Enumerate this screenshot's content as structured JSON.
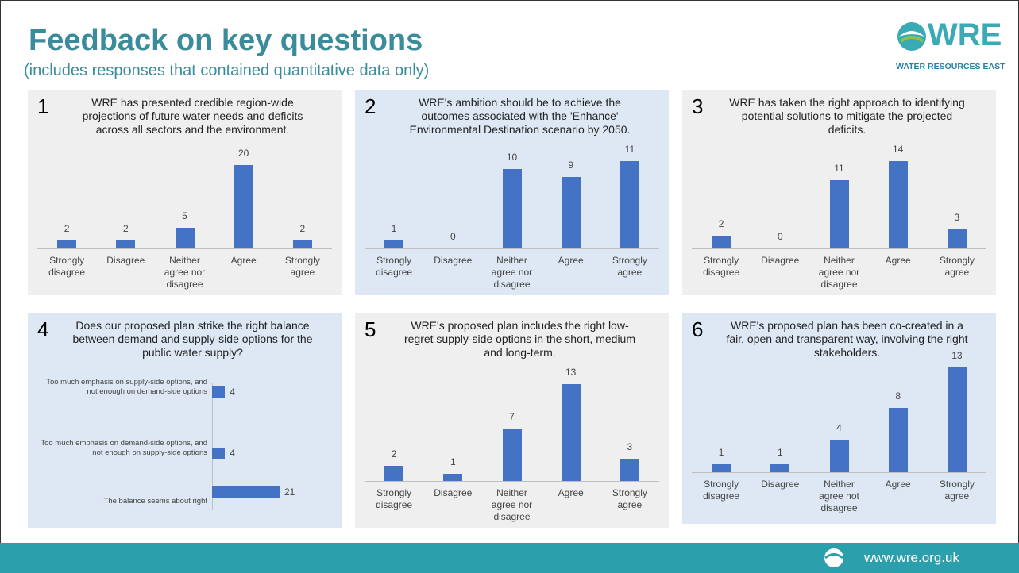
{
  "header": {
    "title": "Feedback on key questions",
    "subtitle": "(includes responses that contained quantitative data only)",
    "logo_text": "WRE",
    "logo_subtitle": "WATER RESOURCES EAST",
    "footer_url": "www.wre.org.uk"
  },
  "chart_data": [
    {
      "type": "bar",
      "number": "1",
      "title": "WRE has presented credible region-wide projections of future water needs and deficits across all sectors and the environment.",
      "categories": [
        "Strongly disagree",
        "Disagree",
        "Neither agree nor disagree",
        "Agree",
        "Strongly agree"
      ],
      "values": [
        2,
        2,
        5,
        20,
        2
      ],
      "color": "#4472c4"
    },
    {
      "type": "bar",
      "number": "2",
      "title": "WRE's ambition should be to achieve the outcomes associated with the 'Enhance' Environmental Destination scenario by 2050.",
      "categories": [
        "Strongly disagree",
        "Disagree",
        "Neither agree nor disagree",
        "Agree",
        "Strongly agree"
      ],
      "values": [
        1,
        0,
        10,
        9,
        11
      ],
      "color": "#4472c4"
    },
    {
      "type": "bar",
      "number": "3",
      "title": "WRE has taken the right approach to identifying potential solutions to mitigate the projected deficits.",
      "categories": [
        "Strongly disagree",
        "Disagree",
        "Neither agree nor disagree",
        "Agree",
        "Strongly agree"
      ],
      "values": [
        2,
        0,
        11,
        14,
        3
      ],
      "color": "#4472c4"
    },
    {
      "type": "hbar",
      "number": "4",
      "title": "Does our proposed plan strike the right balance between demand and supply-side options for the public water supply?",
      "categories": [
        "Too much emphasis on supply-side options, and not enough on demand-side options",
        "Too much emphasis on demand-side options, and not enough on supply-side options",
        "The balance seems about right"
      ],
      "values": [
        4,
        4,
        21
      ],
      "color": "#4472c4"
    },
    {
      "type": "bar",
      "number": "5",
      "title": "WRE's proposed plan includes the right low-regret supply-side options in the short, medium and long-term.",
      "categories": [
        "Strongly disagree",
        "Disagree",
        "Neither agree nor disagree",
        "Agree",
        "Strongly agree"
      ],
      "values": [
        2,
        1,
        7,
        13,
        3
      ],
      "color": "#4472c4"
    },
    {
      "type": "bar",
      "number": "6",
      "title": "WRE's proposed plan has been co-created in a fair, open and transparent way, involving the right stakeholders.",
      "categories": [
        "Strongly disagree",
        "Disagree",
        "Neither agree not disagree",
        "Agree",
        "Strongly agree"
      ],
      "values": [
        1,
        1,
        4,
        8,
        13
      ],
      "color": "#4472c4"
    }
  ]
}
